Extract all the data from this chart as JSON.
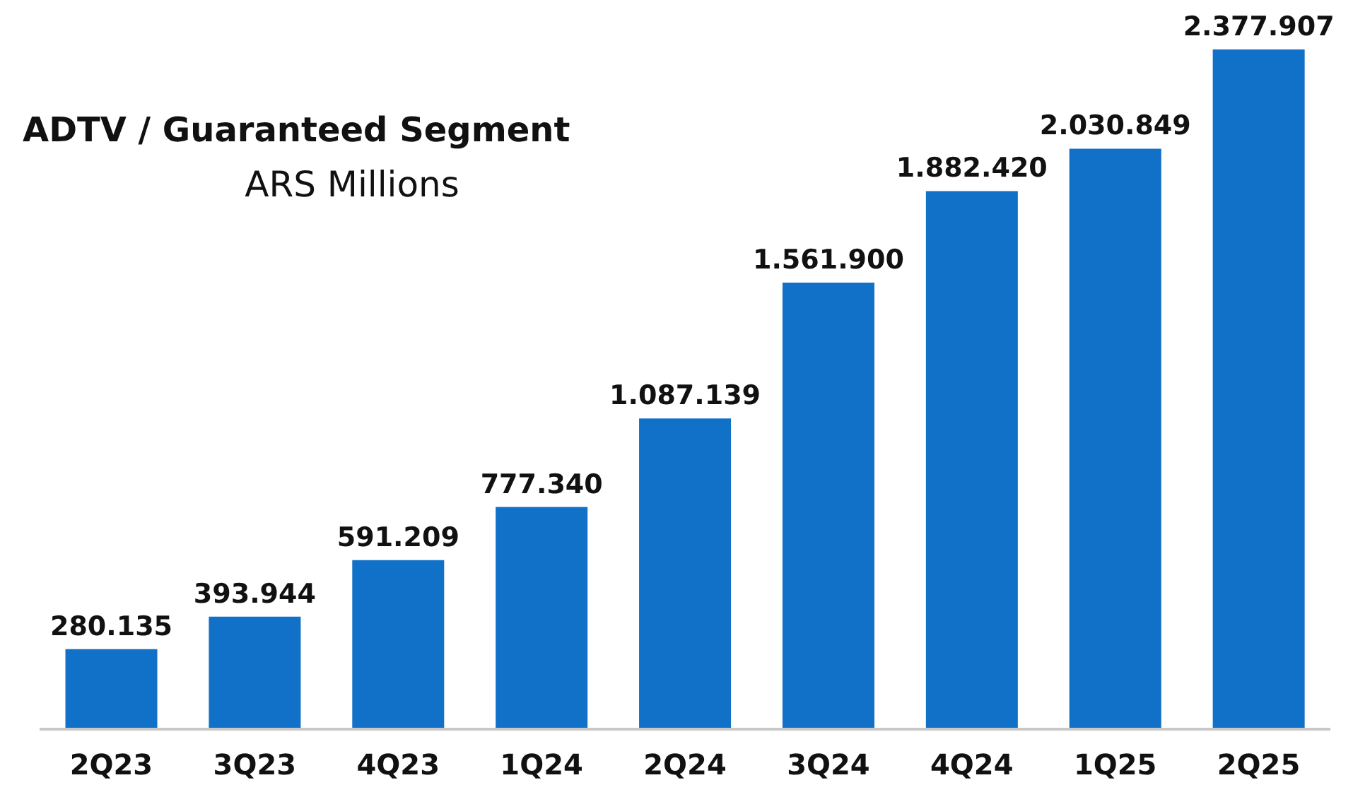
{
  "chart_data": {
    "type": "bar",
    "title": "ADTV / Guaranteed Segment",
    "subtitle": "ARS Millions",
    "categories": [
      "2Q23",
      "3Q23",
      "4Q23",
      "1Q24",
      "2Q24",
      "3Q24",
      "4Q24",
      "1Q25",
      "2Q25"
    ],
    "values": [
      280135,
      393944,
      591209,
      777340,
      1087139,
      1561900,
      1882420,
      2030849,
      2377907
    ],
    "value_labels": [
      "280.135",
      "393.944",
      "591.209",
      "777.340",
      "1.087.139",
      "1.561.900",
      "1.882.420",
      "2.030.849",
      "2.377.907"
    ],
    "color": "#1170c8"
  }
}
